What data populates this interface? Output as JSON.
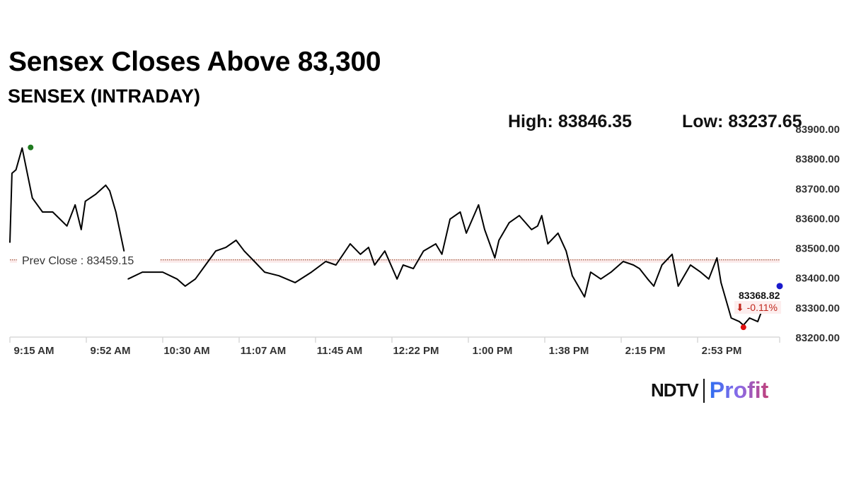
{
  "header": {
    "title": "Sensex Closes Above 83,300",
    "subtitle": "SENSEX (INTRADAY)",
    "high_label": "High: 83846.35",
    "low_label": "Low: 83237.65"
  },
  "logo": {
    "brand": "NDTV",
    "product": "Profit"
  },
  "chart_data": {
    "type": "line",
    "title": "SENSEX (INTRADAY)",
    "xlabel": "",
    "ylabel": "",
    "x_unit": "minutes since 9:15 AM",
    "xlim": [
      0,
      375
    ],
    "ylim": [
      83200,
      83900
    ],
    "x_ticks": [
      {
        "min": 0,
        "label": "9:15 AM"
      },
      {
        "min": 37.5,
        "label": "9:52 AM"
      },
      {
        "min": 75,
        "label": "10:30 AM"
      },
      {
        "min": 112.5,
        "label": "11:07 AM"
      },
      {
        "min": 150,
        "label": "11:45 AM"
      },
      {
        "min": 187.5,
        "label": "12:22 PM"
      },
      {
        "min": 225,
        "label": "1:00 PM"
      },
      {
        "min": 262.5,
        "label": "1:38 PM"
      },
      {
        "min": 300,
        "label": "2:15 PM"
      },
      {
        "min": 337.5,
        "label": "2:53 PM"
      },
      {
        "min": 375,
        "label": ""
      }
    ],
    "y_ticks": [
      "83200.00",
      "83300.00",
      "83400.00",
      "83500.00",
      "83600.00",
      "83700.00",
      "83800.00",
      "83900.00"
    ],
    "prev_close": {
      "value": 83459.15,
      "label": "Prev Close : 83459.15"
    },
    "high": {
      "min": 6,
      "value": 83846.35
    },
    "low": {
      "min": 360,
      "value": 83237.65
    },
    "close": {
      "min": 375,
      "value": 83368.82,
      "label": "83368.82",
      "change_label": "⬇ -0.11%"
    },
    "series": [
      {
        "name": "SENSEX",
        "x": [
          0,
          1,
          3,
          6,
          11,
          16,
          21,
          28,
          32,
          35,
          37,
          42,
          47,
          49,
          52,
          56,
          58,
          65,
          75,
          82,
          86,
          91,
          96,
          101,
          106,
          111,
          115,
          120,
          125,
          132,
          140,
          148,
          155,
          160,
          167,
          172,
          176,
          179,
          184,
          190,
          193,
          198,
          203,
          209,
          212,
          216,
          221,
          224,
          230,
          233,
          238,
          240,
          245,
          250,
          256,
          259,
          261,
          264,
          269,
          273,
          276,
          282,
          285,
          290,
          295,
          301,
          306,
          309,
          313,
          316,
          320,
          325,
          328,
          334,
          339,
          343,
          347,
          349,
          353,
          354,
          358,
          360,
          363,
          367,
          369
        ],
        "y": [
          83518,
          83750,
          83762,
          83835,
          83667,
          83620,
          83620,
          83573,
          83644,
          83561,
          83656,
          83679,
          83710,
          83691,
          83620,
          83489,
          83395,
          83418,
          83418,
          83395,
          83371,
          83395,
          83442,
          83489,
          83501,
          83525,
          83489,
          83454,
          83418,
          83406,
          83383,
          83418,
          83454,
          83442,
          83513,
          83478,
          83501,
          83442,
          83489,
          83395,
          83442,
          83430,
          83489,
          83513,
          83478,
          83596,
          83620,
          83549,
          83644,
          83561,
          83466,
          83525,
          83584,
          83608,
          83561,
          83573,
          83608,
          83513,
          83549,
          83489,
          83406,
          83335,
          83418,
          83395,
          83418,
          83454,
          83442,
          83430,
          83395,
          83371,
          83442,
          83478,
          83371,
          83442,
          83418,
          83395,
          83466,
          83383,
          83288,
          83264,
          83252,
          83240,
          83264,
          83252,
          83288
        ]
      }
    ],
    "colors": {
      "line": "#000000",
      "prev_close": "#8b3a1a",
      "high_marker": "#1f7a1f",
      "low_marker": "#e01010",
      "close_marker": "#1a1acc",
      "change": "#c0281e"
    },
    "grid": false,
    "legend": "none"
  }
}
